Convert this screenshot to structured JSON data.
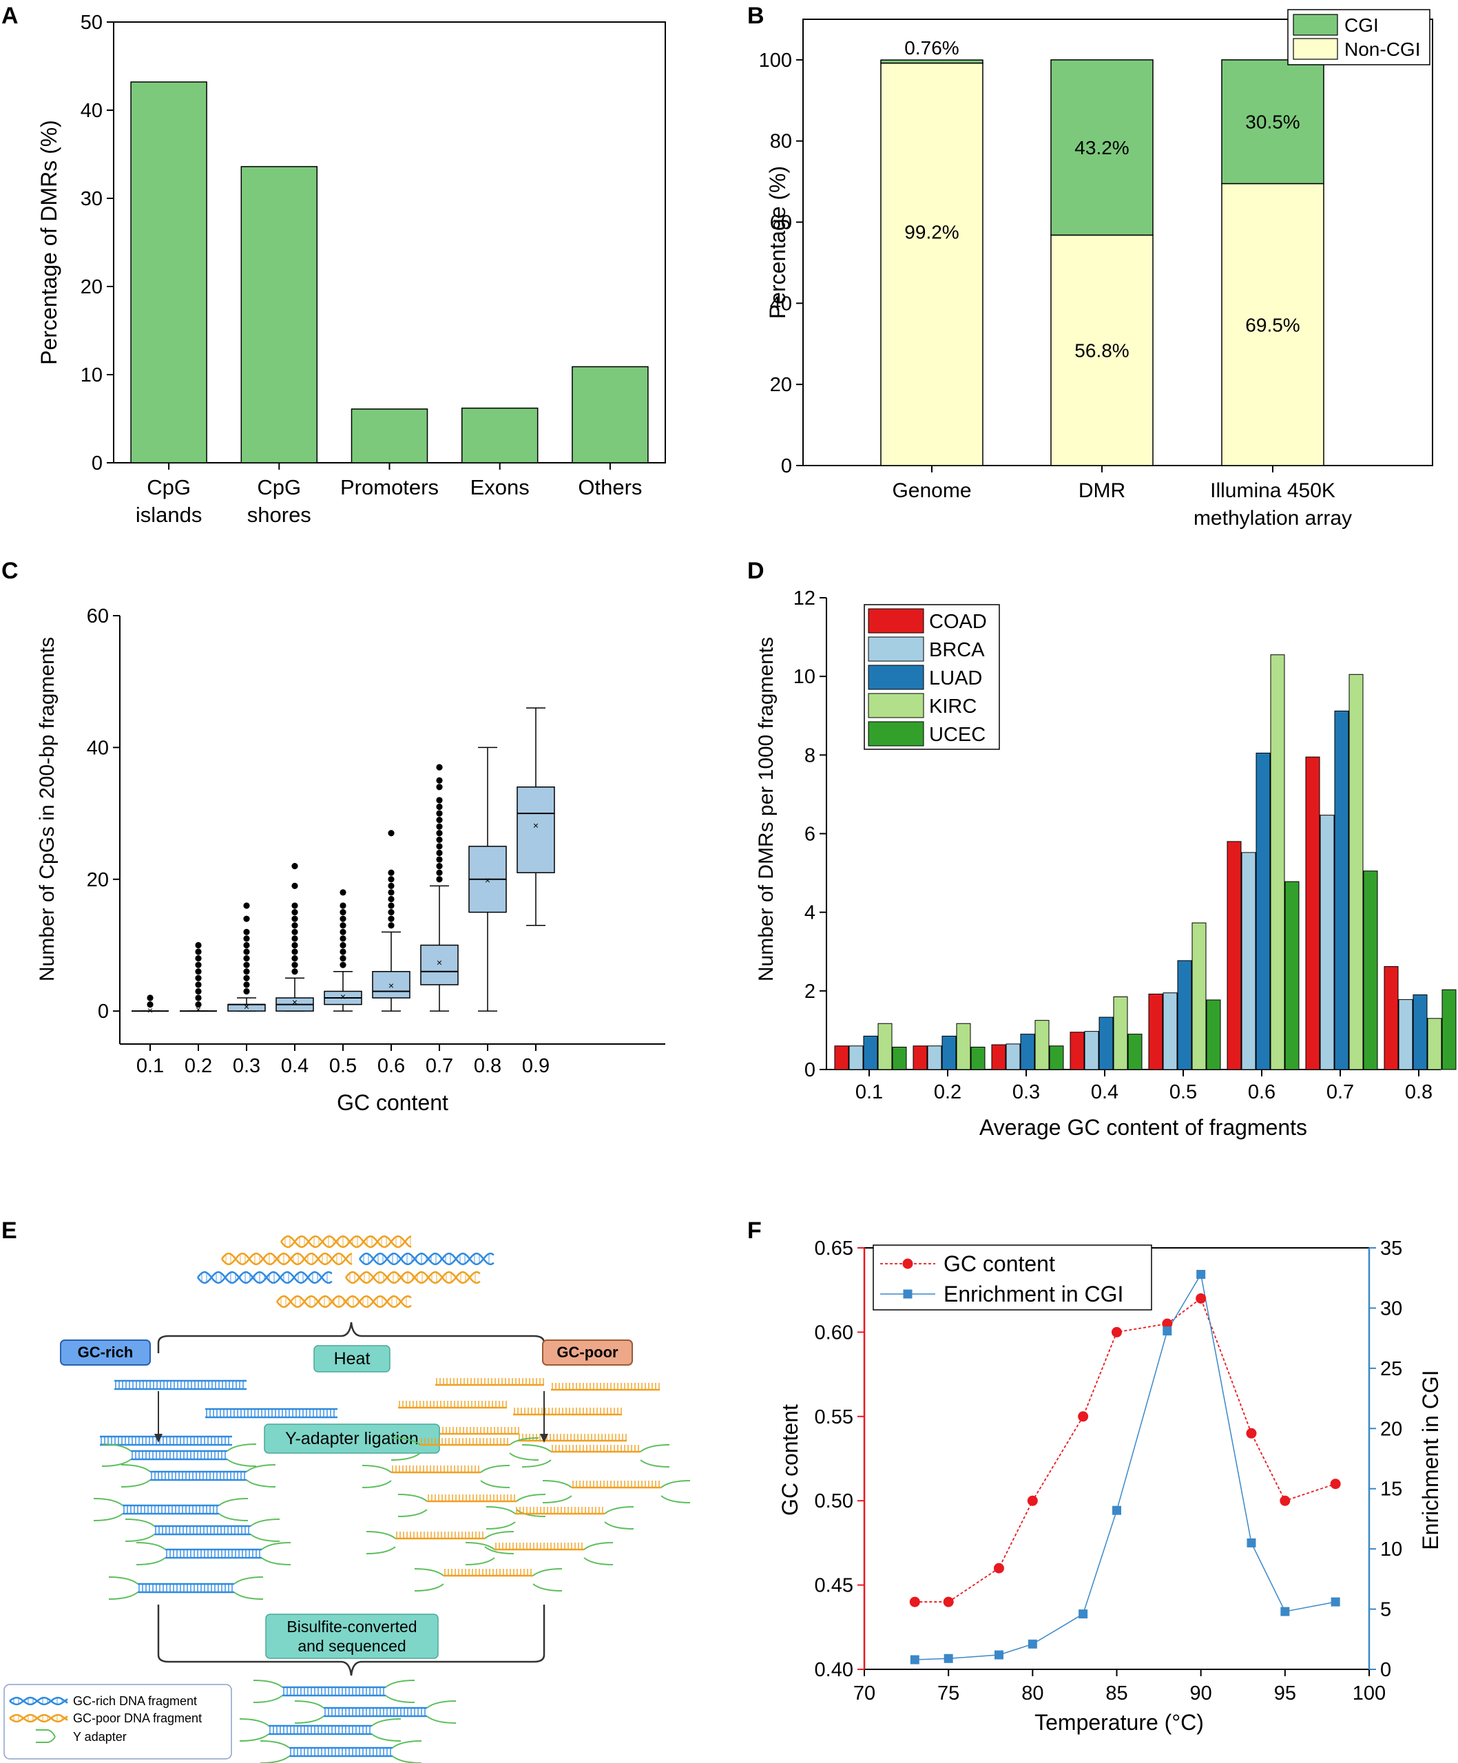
{
  "colors": {
    "green_bar": "#7cc97c",
    "cgi": "#7cc97c",
    "non_cgi": "#ffffcc",
    "box_fill": "#a7c9e3",
    "coad": "#e31a1c",
    "brca": "#a6cee3",
    "luad": "#1f78b4",
    "kirc": "#b2df8a",
    "ucec": "#33a02c",
    "gc_red": "#e8191f",
    "enrich_blue": "#3a88c8",
    "gc_rich": "#2f8ae0",
    "gc_poor": "#f0a020",
    "adapter": "#5cbf5c",
    "label_gcrich_bg": "#6aa5ee",
    "label_gcpoor_bg": "#eda88a",
    "label_step_bg": "#7ed6c8"
  },
  "panels": {
    "a": "A",
    "b": "B",
    "c": "C",
    "d": "D",
    "e": "E",
    "f": "F"
  },
  "chart_data": [
    {
      "panel": "A",
      "type": "bar",
      "ylabel": "Percentage of DMRs (%)",
      "ylim": [
        0,
        50
      ],
      "yticks": [
        0,
        10,
        20,
        30,
        40,
        50
      ],
      "categories": [
        [
          "CpG",
          "islands"
        ],
        [
          "CpG",
          "shores"
        ],
        [
          "Promoters"
        ],
        [
          "Exons"
        ],
        [
          "Others"
        ]
      ],
      "values": [
        43.2,
        33.6,
        6.1,
        6.2,
        10.9
      ]
    },
    {
      "panel": "B",
      "type": "bar",
      "stacked": true,
      "ylabel": "Percentage (%)",
      "ylim": [
        0,
        110
      ],
      "yticks": [
        0,
        20,
        40,
        60,
        80,
        100
      ],
      "categories": [
        [
          "Genome"
        ],
        [
          "DMR"
        ],
        [
          "Illumina 450K",
          "methylation array"
        ]
      ],
      "series": [
        {
          "name": "Non-CGI",
          "values": [
            99.2,
            56.8,
            69.5
          ],
          "labels": [
            "99.2%",
            "56.8%",
            "69.5%"
          ]
        },
        {
          "name": "CGI",
          "values": [
            0.76,
            43.2,
            30.5
          ],
          "labels": [
            "0.76%",
            "43.2%",
            "30.5%"
          ]
        }
      ],
      "legend": [
        "CGI",
        "Non-CGI"
      ],
      "legend_position": "top-right"
    },
    {
      "panel": "C",
      "type": "box",
      "xlabel": "GC content",
      "ylabel": "Number of CpGs in 200-bp fragments",
      "ylim": [
        -5,
        60
      ],
      "yticks": [
        0,
        20,
        40,
        60
      ],
      "categories": [
        "0.1",
        "0.2",
        "0.3",
        "0.4",
        "0.5",
        "0.6",
        "0.7",
        "0.8",
        "0.9"
      ],
      "boxes": [
        {
          "min": 0,
          "q1": 0,
          "median": 0,
          "q3": 0,
          "max": 0,
          "mean": 0.2,
          "outliers": [
            1,
            2
          ]
        },
        {
          "min": 0,
          "q1": 0,
          "median": 0,
          "q3": 0,
          "max": 0,
          "mean": 0.4,
          "outliers": [
            1,
            2,
            3,
            4,
            5,
            6,
            7,
            8,
            9,
            10
          ]
        },
        {
          "min": 0,
          "q1": 0,
          "median": 1,
          "q3": 1,
          "max": 2,
          "mean": 0.8,
          "outliers": [
            3,
            4,
            5,
            6,
            7,
            8,
            9,
            10,
            11,
            12,
            14,
            16
          ]
        },
        {
          "min": 0,
          "q1": 0,
          "median": 1,
          "q3": 2,
          "max": 5,
          "mean": 1.5,
          "outliers": [
            6,
            7,
            8,
            9,
            10,
            11,
            12,
            13,
            14,
            15,
            16,
            19,
            22
          ]
        },
        {
          "min": 0,
          "q1": 1,
          "median": 2,
          "q3": 3,
          "max": 6,
          "mean": 2.3,
          "outliers": [
            7,
            8,
            9,
            10,
            11,
            12,
            13,
            14,
            15,
            16,
            18
          ]
        },
        {
          "min": 0,
          "q1": 2,
          "median": 3,
          "q3": 6,
          "max": 12,
          "mean": 4,
          "outliers": [
            13,
            14,
            15,
            16,
            17,
            18,
            19,
            20,
            21,
            27
          ]
        },
        {
          "min": 0,
          "q1": 4,
          "median": 6,
          "q3": 10,
          "max": 19,
          "mean": 7.5,
          "outliers": [
            20,
            21,
            22,
            23,
            24,
            25,
            26,
            27,
            28,
            29,
            30,
            31,
            32,
            34,
            35,
            37
          ]
        },
        {
          "min": 0,
          "q1": 15,
          "median": 20,
          "q3": 25,
          "max": 40,
          "mean": 20,
          "outliers": []
        },
        {
          "min": 13,
          "q1": 21,
          "median": 30,
          "q3": 34,
          "max": 46,
          "mean": 28.3,
          "outliers": []
        }
      ]
    },
    {
      "panel": "D",
      "type": "bar",
      "xlabel": "Average GC content of fragments",
      "ylabel": "Number of DMRs per 1000 fragments",
      "ylim": [
        0,
        12
      ],
      "yticks": [
        0,
        2,
        4,
        6,
        8,
        10,
        12
      ],
      "categories": [
        "0.1",
        "0.2",
        "0.3",
        "0.4",
        "0.5",
        "0.6",
        "0.7",
        "0.8"
      ],
      "series": [
        {
          "name": "COAD",
          "values": [
            0.6,
            0.6,
            0.63,
            0.95,
            1.92,
            5.8,
            7.95,
            2.62
          ]
        },
        {
          "name": "BRCA",
          "values": [
            0.6,
            0.6,
            0.65,
            0.97,
            1.95,
            5.52,
            6.47,
            1.78
          ]
        },
        {
          "name": "LUAD",
          "values": [
            0.85,
            0.85,
            0.9,
            1.33,
            2.77,
            8.05,
            9.12,
            1.9
          ]
        },
        {
          "name": "KIRC",
          "values": [
            1.17,
            1.17,
            1.25,
            1.85,
            3.73,
            10.55,
            10.05,
            1.3
          ]
        },
        {
          "name": "UCEC",
          "values": [
            0.57,
            0.57,
            0.6,
            0.9,
            1.77,
            4.78,
            5.05,
            2.03
          ]
        }
      ],
      "legend_position": "top-left"
    },
    {
      "panel": "F",
      "type": "line",
      "xlabel": "Temperature (°C)",
      "ylabel_left": "GC content",
      "ylabel_right": "Enrichment in CGI",
      "xlim": [
        70,
        100
      ],
      "xticks": [
        70,
        75,
        80,
        85,
        90,
        95,
        100
      ],
      "ylim_left": [
        0.4,
        0.65
      ],
      "yticks_left": [
        "0.40",
        "0.45",
        "0.50",
        "0.55",
        "0.60",
        "0.65"
      ],
      "ylim_right": [
        0,
        35
      ],
      "yticks_right": [
        0,
        5,
        10,
        15,
        20,
        25,
        30,
        35
      ],
      "x": [
        73,
        75,
        78,
        80,
        83,
        85,
        88,
        90,
        93,
        95,
        98
      ],
      "series": [
        {
          "name": "GC content",
          "axis": "left",
          "values": [
            0.44,
            0.44,
            0.46,
            0.5,
            0.55,
            0.6,
            0.605,
            0.62,
            0.54,
            0.5,
            0.51
          ]
        },
        {
          "name": "Enrichment in CGI",
          "axis": "right",
          "values": [
            0.8,
            0.9,
            1.2,
            2.1,
            4.6,
            13.2,
            28.1,
            32.8,
            10.5,
            4.8,
            5.6
          ]
        }
      ],
      "legend_position": "top-left"
    }
  ],
  "diagram_e": {
    "gc_rich": "GC-rich",
    "gc_poor": "GC-poor",
    "heat": "Heat",
    "ligation": "Y-adapter ligation",
    "bisulfite_line1": "Bisulfite-converted",
    "bisulfite_line2": "and sequenced",
    "legend_gc_rich": "GC-rich DNA fragment",
    "legend_gc_poor": "GC-poor DNA fragment",
    "legend_adapter": "Y adapter"
  }
}
